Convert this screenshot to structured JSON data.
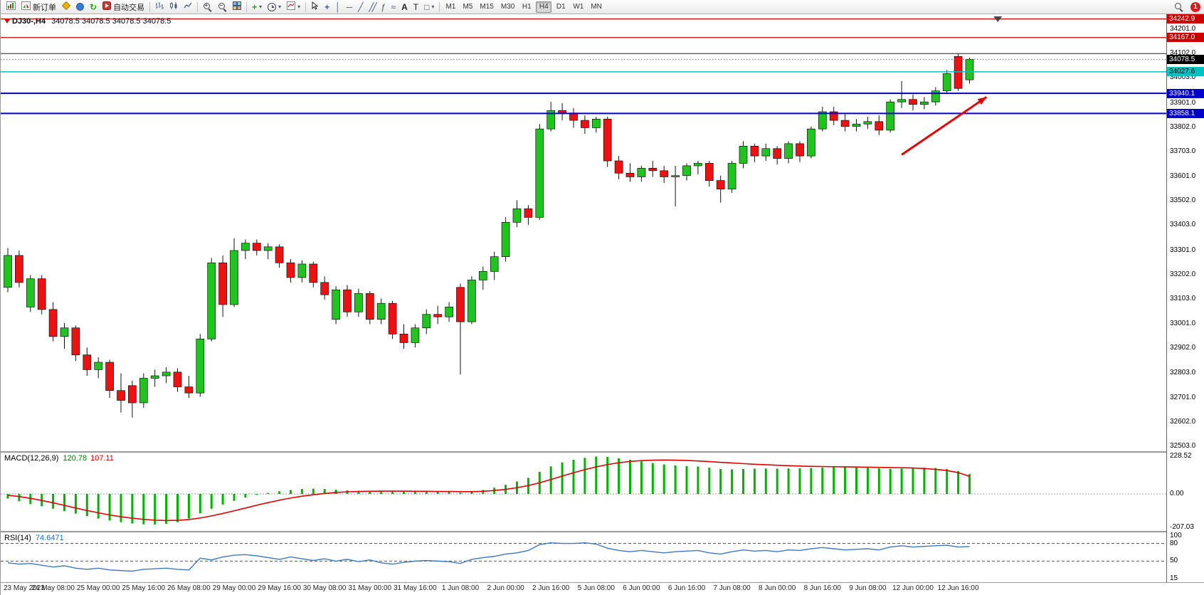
{
  "toolbar": {
    "new_order_label": "新订单",
    "autotrading_label": "自动交易",
    "timeframes": [
      "M1",
      "M5",
      "M15",
      "M30",
      "H1",
      "H4",
      "D1",
      "W1",
      "MN"
    ],
    "active_timeframe": "H4",
    "notification_count": "1"
  },
  "chart": {
    "symbol_title": "DJ30-,H4",
    "ohlc_text": "34078.5 34078.5 34078.5 34078.5",
    "current_price": "34078.5",
    "up_color": "#1fc41f",
    "down_color": "#ee1111",
    "price_ticks": [
      34201.0,
      34102.0,
      34003.0,
      33901.0,
      33802.0,
      33703.0,
      33601.0,
      33502.0,
      33403.0,
      33301.0,
      33202.0,
      33103.0,
      33001.0,
      32902.0,
      32803.0,
      32701.0,
      32602.0,
      32503.0
    ],
    "price_badges": [
      {
        "value": "34242.9",
        "bg": "#cc0000",
        "fg": "#ffffff"
      },
      {
        "value": "34167.0",
        "bg": "#cc0000",
        "fg": "#ffffff"
      },
      {
        "value": "34078.5",
        "bg": "#000000",
        "fg": "#ffffff"
      },
      {
        "value": "34027.6",
        "bg": "#00c2c2",
        "fg": "#000000"
      },
      {
        "value": "33940.1",
        "bg": "#0000cc",
        "fg": "#ffffff"
      },
      {
        "value": "33858.1",
        "bg": "#0000cc",
        "fg": "#ffffff"
      }
    ],
    "hlines": [
      {
        "price": 34242.9,
        "color": "#cc0000",
        "width": 1.3,
        "style": "solid"
      },
      {
        "price": 34167.0,
        "color": "#cc0000",
        "width": 1.3,
        "style": "solid"
      },
      {
        "price": 34102.0,
        "color": "#222222",
        "width": 1,
        "style": "solid"
      },
      {
        "price": 34078.5,
        "color": "#666666",
        "width": 1,
        "style": "dotted"
      },
      {
        "price": 34027.6,
        "color": "#00c2c2",
        "width": 1.5,
        "style": "solid"
      },
      {
        "price": 33940.1,
        "color": "#0000cc",
        "width": 2,
        "style": "solid"
      },
      {
        "price": 33858.1,
        "color": "#0000cc",
        "width": 2,
        "style": "solid"
      }
    ],
    "arrow": {
      "from": {
        "i": 79,
        "price": 33690
      },
      "to": {
        "i": 86.5,
        "price": 33925
      },
      "color": "#e80000"
    },
    "shift_marker_index": 87.5
  },
  "macd": {
    "label": "MACD(12,26,9)",
    "main_value": "120.78",
    "signal_value": "107.11",
    "histogram_color": "#00b400",
    "signal_color": "#e00000",
    "ticks": [
      {
        "v": 228.52,
        "t": "228.52"
      },
      {
        "v": 0,
        "t": "0.00"
      },
      {
        "v": -207.03,
        "t": "-207.03"
      }
    ]
  },
  "rsi": {
    "label": "RSI(14)",
    "value": "74.6471",
    "line_color": "#3c78c8",
    "ticks": [
      {
        "v": 100,
        "t": "100"
      },
      {
        "v": 80,
        "t": "80"
      },
      {
        "v": 50,
        "t": "50"
      },
      {
        "v": 15,
        "t": "15"
      }
    ],
    "levels": [
      80,
      50
    ]
  },
  "chart_data": [
    {
      "type": "candlestick",
      "title": "DJ30-,H4",
      "symbol": "DJ30",
      "timeframe": "H4",
      "ylim": [
        32480,
        34262
      ],
      "label_every_n_bars": 4,
      "x_labels": [
        "23 May 2023",
        "24 May 08:00",
        "25 May 00:00",
        "25 May 16:00",
        "26 May 08:00",
        "29 May 00:00",
        "29 May 16:00",
        "30 May 08:00",
        "31 May 00:00",
        "31 May 16:00",
        "1 Jun 08:00",
        "2 Jun 00:00",
        "2 Jun 16:00",
        "5 Jun 08:00",
        "6 Jun 00:00",
        "6 Jun 16:00",
        "7 Jun 08:00",
        "8 Jun 00:00",
        "8 Jun 16:00",
        "9 Jun 08:00",
        "12 Jun 00:00",
        "12 Jun 16:00"
      ],
      "ohlc": [
        [
          33150,
          33310,
          33130,
          33280
        ],
        [
          33280,
          33300,
          33150,
          33170
        ],
        [
          33070,
          33200,
          33050,
          33185
        ],
        [
          33185,
          33200,
          33040,
          33060
        ],
        [
          33060,
          33090,
          32930,
          32950
        ],
        [
          32950,
          33005,
          32900,
          32985
        ],
        [
          32985,
          32995,
          32850,
          32875
        ],
        [
          32875,
          32905,
          32790,
          32815
        ],
        [
          32815,
          32865,
          32780,
          32845
        ],
        [
          32845,
          32855,
          32700,
          32730
        ],
        [
          32730,
          32800,
          32640,
          32690
        ],
        [
          32750,
          32770,
          32620,
          32680
        ],
        [
          32680,
          32800,
          32660,
          32780
        ],
        [
          32780,
          32815,
          32745,
          32790
        ],
        [
          32790,
          32825,
          32760,
          32805
        ],
        [
          32805,
          32820,
          32725,
          32745
        ],
        [
          32745,
          32790,
          32700,
          32720
        ],
        [
          32720,
          32960,
          32705,
          32940
        ],
        [
          32940,
          33270,
          32930,
          33250
        ],
        [
          33250,
          33280,
          33030,
          33080
        ],
        [
          33080,
          33350,
          33070,
          33300
        ],
        [
          33300,
          33345,
          33265,
          33330
        ],
        [
          33330,
          33345,
          33280,
          33300
        ],
        [
          33300,
          33330,
          33265,
          33315
        ],
        [
          33315,
          33325,
          33230,
          33250
        ],
        [
          33250,
          33265,
          33170,
          33190
        ],
        [
          33190,
          33260,
          33170,
          33245
        ],
        [
          33245,
          33255,
          33150,
          33170
        ],
        [
          33170,
          33195,
          33100,
          33120
        ],
        [
          33020,
          33155,
          33000,
          33140
        ],
        [
          33140,
          33160,
          33030,
          33050
        ],
        [
          33050,
          33145,
          33030,
          33125
        ],
        [
          33125,
          33135,
          33000,
          33020
        ],
        [
          33020,
          33105,
          33000,
          33085
        ],
        [
          33085,
          33095,
          32940,
          32960
        ],
        [
          32960,
          33000,
          32900,
          32925
        ],
        [
          32925,
          33000,
          32905,
          32985
        ],
        [
          32985,
          33060,
          32960,
          33040
        ],
        [
          33040,
          33075,
          33000,
          33030
        ],
        [
          33030,
          33090,
          33010,
          33070
        ],
        [
          33150,
          33165,
          32795,
          33010
        ],
        [
          33010,
          33195,
          33000,
          33180
        ],
        [
          33180,
          33235,
          33140,
          33215
        ],
        [
          33215,
          33295,
          33180,
          33275
        ],
        [
          33275,
          33435,
          33255,
          33415
        ],
        [
          33415,
          33505,
          33395,
          33470
        ],
        [
          33470,
          33485,
          33405,
          33435
        ],
        [
          33435,
          33815,
          33425,
          33795
        ],
        [
          33795,
          33905,
          33785,
          33870
        ],
        [
          33870,
          33900,
          33830,
          33860
        ],
        [
          33860,
          33880,
          33800,
          33830
        ],
        [
          33830,
          33850,
          33775,
          33800
        ],
        [
          33800,
          33845,
          33780,
          33835
        ],
        [
          33835,
          33845,
          33640,
          33665
        ],
        [
          33665,
          33685,
          33590,
          33615
        ],
        [
          33615,
          33655,
          33580,
          33600
        ],
        [
          33600,
          33645,
          33580,
          33635
        ],
        [
          33635,
          33665,
          33600,
          33625
        ],
        [
          33625,
          33645,
          33575,
          33600
        ],
        [
          33600,
          33645,
          33480,
          33605
        ],
        [
          33605,
          33655,
          33585,
          33645
        ],
        [
          33645,
          33665,
          33610,
          33655
        ],
        [
          33655,
          33665,
          33560,
          33585
        ],
        [
          33585,
          33605,
          33495,
          33550
        ],
        [
          33550,
          33665,
          33535,
          33655
        ],
        [
          33655,
          33745,
          33635,
          33725
        ],
        [
          33725,
          33735,
          33660,
          33685
        ],
        [
          33685,
          33735,
          33665,
          33715
        ],
        [
          33715,
          33725,
          33650,
          33675
        ],
        [
          33675,
          33745,
          33655,
          33735
        ],
        [
          33735,
          33745,
          33660,
          33685
        ],
        [
          33685,
          33805,
          33675,
          33795
        ],
        [
          33795,
          33885,
          33785,
          33865
        ],
        [
          33865,
          33885,
          33810,
          33830
        ],
        [
          33830,
          33855,
          33785,
          33805
        ],
        [
          33805,
          33835,
          33785,
          33815
        ],
        [
          33815,
          33845,
          33795,
          33825
        ],
        [
          33825,
          33850,
          33770,
          33790
        ],
        [
          33790,
          33915,
          33780,
          33905
        ],
        [
          33905,
          33990,
          33880,
          33915
        ],
        [
          33915,
          33935,
          33870,
          33895
        ],
        [
          33895,
          33925,
          33875,
          33905
        ],
        [
          33905,
          33965,
          33890,
          33950
        ],
        [
          33950,
          34035,
          33940,
          34020
        ],
        [
          34090,
          34102,
          33950,
          33960
        ],
        [
          33995,
          34085,
          33980,
          34078.5
        ]
      ]
    },
    {
      "type": "bar+line",
      "title": "MACD(12,26,9)",
      "ylim": [
        -230,
        256
      ],
      "histogram": [
        -28,
        -45,
        -62,
        -75,
        -90,
        -105,
        -120,
        -135,
        -150,
        -162,
        -172,
        -180,
        -185,
        -186,
        -182,
        -172,
        -150,
        -118,
        -90,
        -65,
        -42,
        -22,
        -6,
        6,
        16,
        24,
        30,
        32,
        30,
        26,
        22,
        18,
        16,
        15,
        14,
        13,
        14,
        15,
        14,
        12,
        8,
        14,
        24,
        38,
        56,
        76,
        98,
        135,
        168,
        192,
        208,
        220,
        228,
        226,
        218,
        208,
        198,
        188,
        180,
        174,
        170,
        167,
        160,
        152,
        150,
        152,
        154,
        155,
        154,
        155,
        156,
        158,
        161,
        163,
        164,
        163,
        160,
        156,
        153,
        155,
        158,
        160,
        158,
        152,
        140,
        120.78
      ],
      "signal": [
        -8,
        -16,
        -27,
        -40,
        -54,
        -70,
        -86,
        -101,
        -115,
        -128,
        -139,
        -148,
        -155,
        -160,
        -162,
        -161,
        -156,
        -147,
        -134,
        -119,
        -103,
        -86,
        -69,
        -53,
        -38,
        -25,
        -14,
        -5,
        3,
        9,
        13,
        15,
        16,
        17,
        17,
        17,
        16,
        16,
        15,
        15,
        14,
        14,
        16,
        21,
        28,
        38,
        51,
        68,
        88,
        109,
        129,
        148,
        165,
        179,
        190,
        198,
        203,
        206,
        207,
        206,
        204,
        201,
        197,
        193,
        189,
        185,
        181,
        178,
        175,
        172,
        170,
        168,
        167,
        166,
        165,
        164,
        163,
        162,
        161,
        160,
        158,
        155,
        150,
        143,
        130,
        107.11
      ]
    },
    {
      "type": "line",
      "title": "RSI(14)",
      "ylim": [
        13,
        100
      ],
      "levels": [
        80,
        50
      ],
      "values": [
        47,
        45,
        46,
        43,
        40,
        42,
        38,
        36,
        38,
        35,
        34,
        33,
        36,
        37,
        38,
        36,
        35,
        55,
        52,
        57,
        60,
        61,
        59,
        56,
        53,
        57,
        54,
        51,
        54,
        50,
        53,
        49,
        52,
        47,
        45,
        48,
        50,
        51,
        50,
        49,
        46,
        53,
        56,
        58,
        62,
        64,
        68,
        78,
        81,
        80,
        80,
        81,
        79,
        72,
        68,
        66,
        68,
        66,
        64,
        66,
        67,
        68,
        64,
        62,
        66,
        69,
        67,
        68,
        66,
        69,
        68,
        71,
        73,
        71,
        69,
        70,
        71,
        69,
        74,
        76,
        74,
        75,
        76,
        77,
        74,
        74.6471
      ]
    }
  ]
}
